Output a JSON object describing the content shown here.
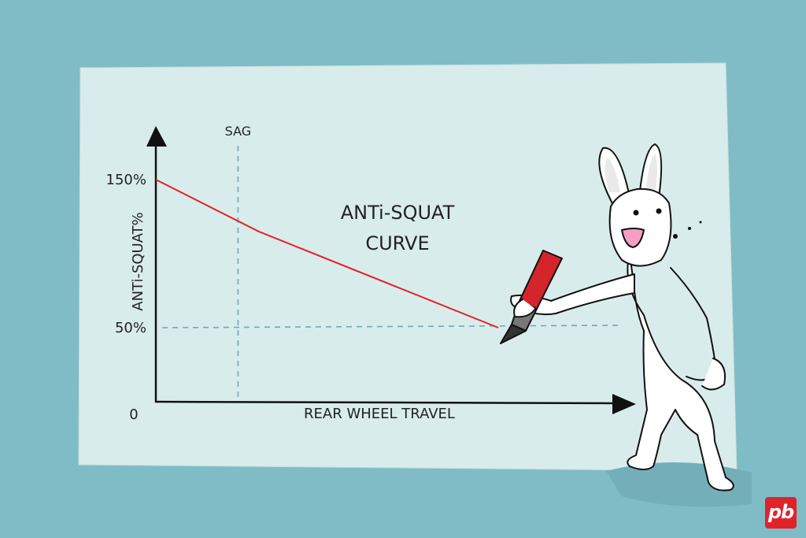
{
  "chart_data": {
    "type": "line",
    "title": "ANTi-SQUAT CURVE",
    "title_lines": [
      "ANTi-SQUAT",
      "CURVE"
    ],
    "xlabel": "REAR WHEEL TRAVEL",
    "ylabel": "ANTi-SQUAT%",
    "origin_label": "0",
    "y_ticks": [
      {
        "label": "150%",
        "value": 150
      },
      {
        "label": "50%",
        "value": 50
      }
    ],
    "ylim": [
      0,
      150
    ],
    "xlim": [
      0,
      100
    ],
    "series": [
      {
        "values": [
          {
            "x": 0,
            "y": 150
          },
          {
            "x": 30,
            "y": 115
          },
          {
            "x": 100,
            "y": 50
          }
        ]
      }
    ],
    "sag": {
      "label": "SAG",
      "x": 24
    },
    "reference_line_y": 50,
    "colors": {
      "curve": "#e0232b",
      "background": "#7fbcc6",
      "paper": "#d9ecec",
      "guides": "#6fa9b3"
    }
  },
  "logo": {
    "text": "pb"
  }
}
